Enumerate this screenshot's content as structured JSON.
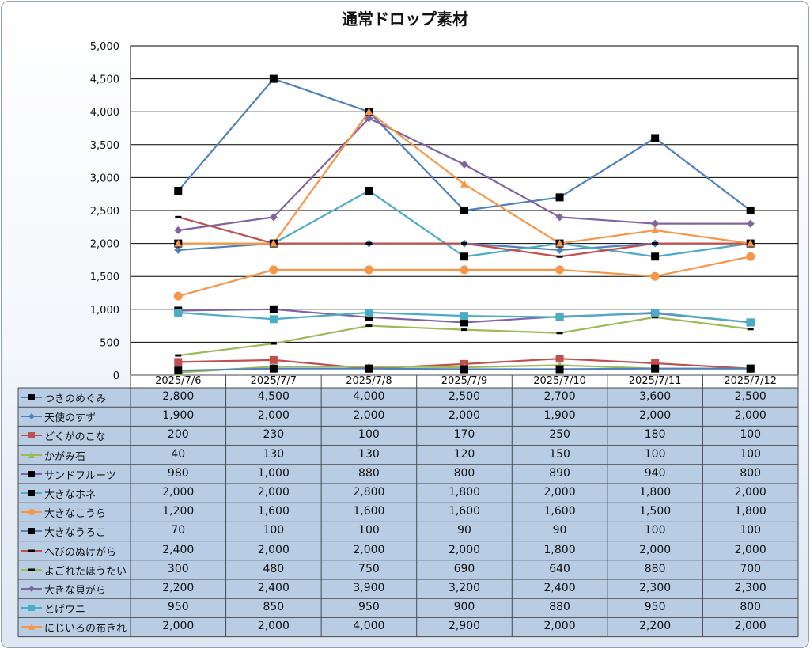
{
  "colors": {
    "grid": "#000000",
    "table_fill": "#b8cce4",
    "table_border": "#4a4a4a"
  },
  "chart_data": {
    "type": "line",
    "title": "通常ドロップ素材",
    "categories": [
      "2025/7/6",
      "2025/7/7",
      "2025/7/8",
      "2025/7/9",
      "2025/7/10",
      "2025/7/11",
      "2025/7/12"
    ],
    "ylim": [
      0,
      5000
    ],
    "y_ticks": [
      "5,000",
      "4,500",
      "4,000",
      "3,500",
      "3,000",
      "2,500",
      "2,000",
      "1,500",
      "1,000",
      "500",
      "0"
    ],
    "grid": true,
    "legend": "data-table",
    "series": [
      {
        "name": "つきのめぐみ",
        "color": "#4f81bd",
        "marker": "square",
        "marker_color": "#000000",
        "values": [
          2800,
          4500,
          4000,
          2500,
          2700,
          3600,
          2500
        ],
        "labels": [
          "2,800",
          "4,500",
          "4,000",
          "2,500",
          "2,700",
          "3,600",
          "2,500"
        ]
      },
      {
        "name": "天使のすず",
        "color": "#4f81bd",
        "marker": "diamond",
        "marker_color": "#4f81bd",
        "values": [
          1900,
          2000,
          2000,
          2000,
          1900,
          2000,
          2000
        ],
        "labels": [
          "1,900",
          "2,000",
          "2,000",
          "2,000",
          "1,900",
          "2,000",
          "2,000"
        ]
      },
      {
        "name": "どくがのこな",
        "color": "#c0504d",
        "marker": "square",
        "marker_color": "#c0504d",
        "values": [
          200,
          230,
          100,
          170,
          250,
          180,
          100
        ],
        "labels": [
          "200",
          "230",
          "100",
          "170",
          "250",
          "180",
          "100"
        ]
      },
      {
        "name": "かがみ石",
        "color": "#9bbb59",
        "marker": "triangle",
        "marker_color": "#9bbb59",
        "values": [
          40,
          130,
          130,
          120,
          150,
          100,
          100
        ],
        "labels": [
          "40",
          "130",
          "130",
          "120",
          "150",
          "100",
          "100"
        ]
      },
      {
        "name": "サンドフルーツ",
        "color": "#8064a2",
        "marker": "square",
        "marker_color": "#000000",
        "values": [
          980,
          1000,
          880,
          800,
          890,
          940,
          800
        ],
        "labels": [
          "980",
          "1,000",
          "880",
          "800",
          "890",
          "940",
          "800"
        ]
      },
      {
        "name": "大きなホネ",
        "color": "#4bacc6",
        "marker": "square",
        "marker_color": "#000000",
        "values": [
          2000,
          2000,
          2800,
          1800,
          2000,
          1800,
          2000
        ],
        "labels": [
          "2,000",
          "2,000",
          "2,800",
          "1,800",
          "2,000",
          "1,800",
          "2,000"
        ]
      },
      {
        "name": "大きなこうら",
        "color": "#f79646",
        "marker": "circle",
        "marker_color": "#f79646",
        "values": [
          1200,
          1600,
          1600,
          1600,
          1600,
          1500,
          1800
        ],
        "labels": [
          "1,200",
          "1,600",
          "1,600",
          "1,600",
          "1,600",
          "1,500",
          "1,800"
        ]
      },
      {
        "name": "大きなうろこ",
        "color": "#4f81bd",
        "marker": "square",
        "marker_color": "#000000",
        "values": [
          70,
          100,
          100,
          90,
          90,
          100,
          100
        ],
        "labels": [
          "70",
          "100",
          "100",
          "90",
          "90",
          "100",
          "100"
        ]
      },
      {
        "name": "へびのぬけがら",
        "color": "#c0504d",
        "marker": "dash",
        "marker_color": "#000000",
        "values": [
          2400,
          2000,
          2000,
          2000,
          1800,
          2000,
          2000
        ],
        "labels": [
          "2,400",
          "2,000",
          "2,000",
          "2,000",
          "1,800",
          "2,000",
          "2,000"
        ]
      },
      {
        "name": "よごれたほうたい",
        "color": "#9bbb59",
        "marker": "dash",
        "marker_color": "#000000",
        "values": [
          300,
          480,
          750,
          690,
          640,
          880,
          700
        ],
        "labels": [
          "300",
          "480",
          "750",
          "690",
          "640",
          "880",
          "700"
        ]
      },
      {
        "name": "大きな貝がら",
        "color": "#8064a2",
        "marker": "diamond",
        "marker_color": "#8064a2",
        "values": [
          2200,
          2400,
          3900,
          3200,
          2400,
          2300,
          2300
        ],
        "labels": [
          "2,200",
          "2,400",
          "3,900",
          "3,200",
          "2,400",
          "2,300",
          "2,300"
        ]
      },
      {
        "name": "とげウニ",
        "color": "#4bacc6",
        "marker": "square",
        "marker_color": "#4bacc6",
        "values": [
          950,
          850,
          950,
          900,
          880,
          950,
          800
        ],
        "labels": [
          "950",
          "850",
          "950",
          "900",
          "880",
          "950",
          "800"
        ]
      },
      {
        "name": "にじいろの布きれ",
        "color": "#f79646",
        "marker": "triangle",
        "marker_color": "#f79646",
        "values": [
          2000,
          2000,
          4000,
          2900,
          2000,
          2200,
          2000
        ],
        "labels": [
          "2,000",
          "2,000",
          "4,000",
          "2,900",
          "2,000",
          "2,200",
          "2,000"
        ]
      }
    ]
  }
}
